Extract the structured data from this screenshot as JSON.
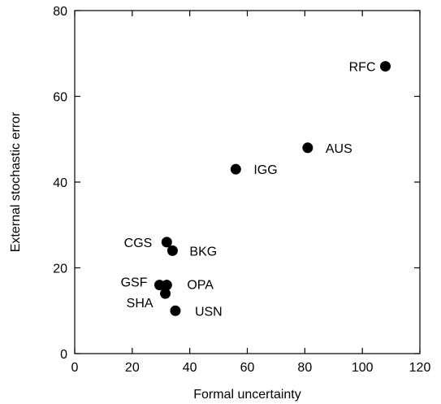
{
  "chart_data": {
    "type": "scatter",
    "title": "",
    "xlabel": "Formal uncertainty",
    "ylabel": "External stochastic error",
    "xlim": [
      0,
      120
    ],
    "ylim": [
      0,
      80
    ],
    "xticks": [
      0,
      20,
      40,
      60,
      80,
      100,
      120
    ],
    "yticks": [
      0,
      20,
      40,
      60,
      80
    ],
    "grid": false,
    "legend": "none",
    "marker_color": "#000000",
    "points": [
      {
        "label": "RFC",
        "x": 108,
        "y": 67
      },
      {
        "label": "AUS",
        "x": 81,
        "y": 48
      },
      {
        "label": "IGG",
        "x": 56,
        "y": 43
      },
      {
        "label": "CGS",
        "x": 32,
        "y": 26
      },
      {
        "label": "BKG",
        "x": 34,
        "y": 24
      },
      {
        "label": "GSF",
        "x": 29.5,
        "y": 16
      },
      {
        "label": "OPA",
        "x": 32,
        "y": 16
      },
      {
        "label": "SHA",
        "x": 31.5,
        "y": 14
      },
      {
        "label": "USN",
        "x": 35,
        "y": 10
      }
    ]
  }
}
